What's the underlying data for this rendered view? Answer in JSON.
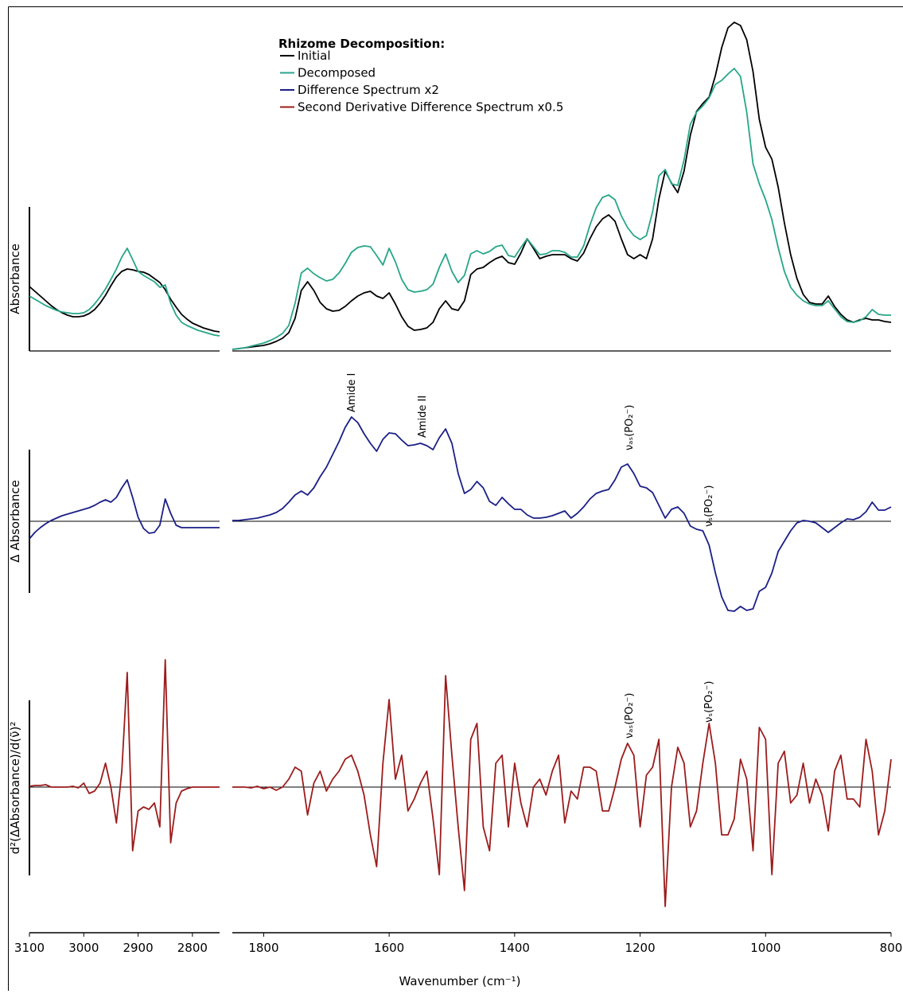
{
  "chart_data": {
    "type": "line",
    "legend_title": "Rhizome Decomposition:",
    "xlabel": "Wavenumber (cm⁻¹)",
    "xlim": [
      [
        3100,
        2750
      ],
      [
        1850,
        800
      ]
    ],
    "xticks": [
      3100,
      3000,
      2900,
      2800,
      1800,
      1600,
      1400,
      1200,
      1000,
      800
    ],
    "x": [
      3100,
      3090,
      3080,
      3070,
      3060,
      3050,
      3040,
      3030,
      3020,
      3010,
      3000,
      2990,
      2980,
      2970,
      2960,
      2950,
      2940,
      2930,
      2920,
      2910,
      2900,
      2890,
      2880,
      2870,
      2860,
      2850,
      2840,
      2830,
      2820,
      2810,
      2800,
      2790,
      2780,
      2770,
      2760,
      2750,
      1850,
      1840,
      1830,
      1820,
      1810,
      1800,
      1790,
      1780,
      1770,
      1760,
      1750,
      1740,
      1730,
      1720,
      1710,
      1700,
      1690,
      1680,
      1670,
      1660,
      1650,
      1640,
      1630,
      1620,
      1610,
      1600,
      1590,
      1580,
      1570,
      1560,
      1550,
      1540,
      1530,
      1520,
      1510,
      1500,
      1490,
      1480,
      1470,
      1460,
      1450,
      1440,
      1430,
      1420,
      1410,
      1400,
      1390,
      1380,
      1370,
      1360,
      1350,
      1340,
      1330,
      1320,
      1310,
      1300,
      1290,
      1280,
      1270,
      1260,
      1250,
      1240,
      1230,
      1220,
      1210,
      1200,
      1190,
      1180,
      1170,
      1160,
      1150,
      1140,
      1130,
      1120,
      1110,
      1100,
      1090,
      1080,
      1070,
      1060,
      1050,
      1040,
      1030,
      1020,
      1010,
      1000,
      990,
      980,
      970,
      960,
      950,
      940,
      930,
      920,
      910,
      900,
      890,
      880,
      870,
      860,
      850,
      840,
      830,
      820,
      810,
      800
    ],
    "panels": [
      {
        "ylabel": "Absorbance",
        "ylim": [
          0,
          420
        ],
        "series": [
          {
            "name": "Initial",
            "color": "#000000",
            "values": [
              81,
              75,
              69,
              63,
              57,
              52,
              48,
              45,
              43,
              43,
              44,
              47,
              52,
              60,
              70,
              82,
              93,
              100,
              103,
              102,
              100,
              99,
              96,
              91,
              86,
              77,
              65,
              55,
              46,
              40,
              35,
              32,
              29,
              27,
              25,
              24,
              2,
              3,
              4,
              5,
              6,
              7,
              9,
              12,
              16,
              23,
              41,
              76,
              87,
              76,
              61,
              53,
              50,
              51,
              56,
              63,
              69,
              73,
              75,
              69,
              66,
              73,
              59,
              43,
              31,
              26,
              27,
              29,
              36,
              53,
              63,
              53,
              51,
              63,
              96,
              103,
              105,
              111,
              116,
              119,
              111,
              109,
              123,
              141,
              129,
              116,
              119,
              121,
              121,
              121,
              116,
              113,
              123,
              141,
              156,
              166,
              171,
              163,
              141,
              121,
              116,
              121,
              116,
              141,
              191,
              226,
              211,
              199,
              226,
              271,
              301,
              311,
              319,
              346,
              381,
              406,
              413,
              409,
              391,
              351,
              291,
              256,
              241,
              206,
              161,
              121,
              91,
              71,
              61,
              59,
              59,
              69,
              56,
              46,
              39,
              36,
              39,
              41,
              39,
              39,
              37,
              36
            ]
          },
          {
            "name": "Decomposed",
            "color": "#27a688",
            "values": [
              69,
              65,
              61,
              57,
              54,
              51,
              49,
              48,
              47,
              47,
              48,
              52,
              59,
              68,
              78,
              90,
              103,
              118,
              129,
              115,
              100,
              95,
              91,
              87,
              80,
              83,
              60,
              45,
              36,
              32,
              29,
              26,
              24,
              22,
              20,
              19,
              2,
              3,
              4,
              6,
              8,
              10,
              13,
              17,
              22,
              32,
              60,
              98,
              104,
              97,
              92,
              88,
              90,
              98,
              110,
              124,
              130,
              132,
              131,
              120,
              108,
              129,
              112,
              90,
              77,
              74,
              75,
              77,
              84,
              105,
              122,
              100,
              86,
              95,
              122,
              126,
              122,
              125,
              131,
              133,
              120,
              118,
              130,
              141,
              131,
              121,
              122,
              126,
              126,
              124,
              118,
              118,
              132,
              158,
              180,
              193,
              196,
              190,
              170,
              155,
              145,
              140,
              145,
              175,
              220,
              228,
              210,
              208,
              240,
              285,
              300,
              308,
              318,
              335,
              340,
              348,
              355,
              345,
              300,
              235,
              210,
              190,
              165,
              130,
              100,
              80,
              70,
              63,
              59,
              57,
              57,
              63,
              53,
              43,
              37,
              36,
              38,
              43,
              52,
              46,
              45,
              45
            ]
          }
        ]
      },
      {
        "ylabel": "Δ Absorbance",
        "ylim": [
          -140,
          140
        ],
        "annotations": [
          "Amide I",
          "Amide II",
          "νₐₛ(PO₂⁻)",
          "νₛ(PO₂⁻)"
        ],
        "series": [
          {
            "name": "Difference Spectrum x2",
            "color": "#1b1f86",
            "values": [
              -22,
              -14,
              -8,
              -3,
              1,
              4,
              7,
              9,
              11,
              13,
              15,
              17,
              20,
              24,
              27,
              24,
              30,
              42,
              52,
              30,
              5,
              -9,
              -15,
              -14,
              -5,
              28,
              10,
              -5,
              -8,
              -8,
              -8,
              -8,
              -8,
              -8,
              -8,
              -8,
              1,
              1,
              2,
              3,
              4,
              6,
              8,
              11,
              16,
              24,
              33,
              38,
              33,
              42,
              56,
              68,
              84,
              100,
              118,
              131,
              124,
              110,
              98,
              88,
              103,
              111,
              110,
              102,
              95,
              96,
              98,
              95,
              90,
              105,
              116,
              98,
              60,
              35,
              40,
              50,
              42,
              25,
              20,
              30,
              22,
              15,
              15,
              8,
              4,
              4,
              5,
              7,
              10,
              13,
              4,
              10,
              18,
              28,
              35,
              38,
              40,
              52,
              68,
              72,
              60,
              44,
              42,
              36,
              20,
              4,
              15,
              18,
              10,
              -6,
              -10,
              -12,
              -30,
              -65,
              -95,
              -112,
              -113,
              -107,
              -112,
              -110,
              -88,
              -83,
              -65,
              -38,
              -25,
              -12,
              -2,
              1,
              0,
              -2,
              -8,
              -14,
              -8,
              -2,
              3,
              2,
              5,
              12,
              24,
              14,
              14,
              18
            ]
          }
        ]
      },
      {
        "ylabel": "d²(ΔAbsorbance)/d(ν̃)²",
        "ylim": [
          -180,
          180
        ],
        "annotations": [
          "νₐₛ(PO₂⁻)",
          "νₛ(PO₂⁻)"
        ],
        "series": [
          {
            "name": "Second Derivative Difference Spectrum x0.5",
            "color": "#9c1c1c",
            "values": [
              1,
              2,
              2,
              3,
              0,
              0,
              0,
              0,
              1,
              -1,
              5,
              -8,
              -5,
              5,
              30,
              0,
              -45,
              20,
              144,
              -80,
              -30,
              -25,
              -28,
              -20,
              -50,
              160,
              -70,
              -20,
              -5,
              -2,
              0,
              0,
              0,
              0,
              0,
              0,
              0,
              0,
              0,
              -1,
              1,
              -2,
              0,
              -4,
              0,
              10,
              25,
              20,
              -35,
              5,
              20,
              -5,
              10,
              20,
              35,
              40,
              20,
              -10,
              -60,
              -100,
              30,
              110,
              10,
              40,
              -30,
              -15,
              5,
              20,
              -40,
              -110,
              140,
              40,
              -50,
              -130,
              60,
              80,
              -50,
              -80,
              30,
              40,
              -50,
              30,
              -20,
              -50,
              0,
              10,
              -10,
              20,
              40,
              -45,
              -5,
              -15,
              25,
              25,
              20,
              -30,
              -30,
              0,
              35,
              55,
              40,
              -50,
              15,
              25,
              60,
              -150,
              0,
              50,
              30,
              -50,
              -30,
              30,
              80,
              30,
              -60,
              -60,
              -40,
              35,
              10,
              -80,
              75,
              60,
              -110,
              30,
              45,
              -20,
              -10,
              30,
              -20,
              10,
              -10,
              -55,
              20,
              40,
              -15,
              -15,
              -25,
              60,
              20,
              -60,
              -30,
              35
            ]
          }
        ]
      }
    ]
  }
}
